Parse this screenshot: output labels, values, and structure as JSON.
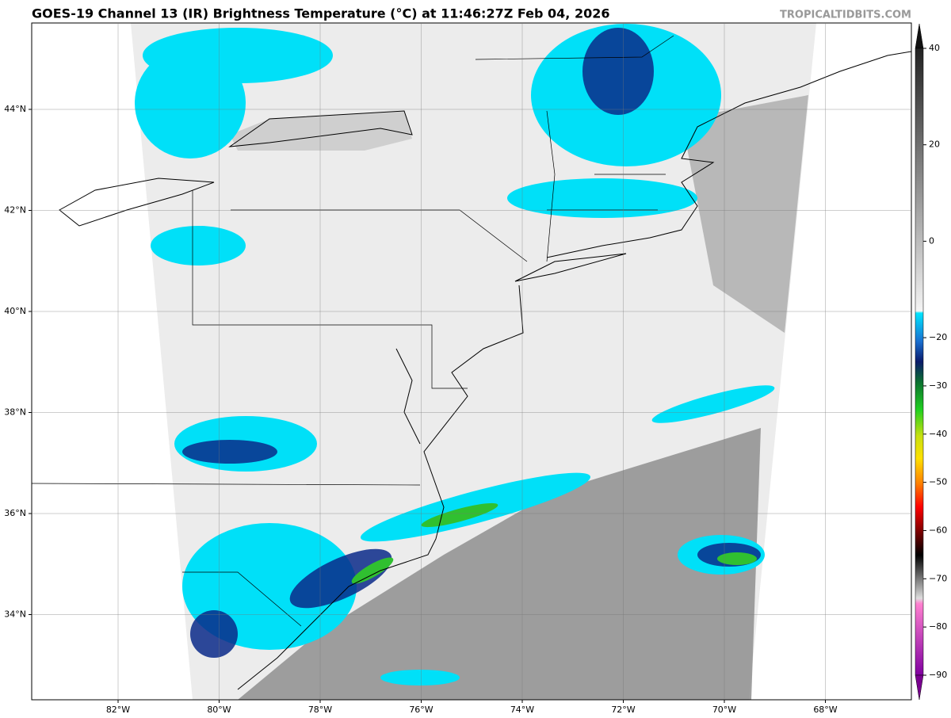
{
  "map": {
    "title": "GOES-19 Channel 13 (IR) Brightness Temperature (°C) at 11:46:27Z Feb 04, 2026",
    "credit": "TROPICALTIDBITS.COM",
    "lat_ticks": [
      {
        "value": 44,
        "label": "44°N"
      },
      {
        "value": 42,
        "label": "42°N"
      },
      {
        "value": 40,
        "label": "40°N"
      },
      {
        "value": 38,
        "label": "38°N"
      },
      {
        "value": 36,
        "label": "36°N"
      },
      {
        "value": 34,
        "label": "34°N"
      }
    ],
    "lon_ticks": [
      {
        "value": -82,
        "label": "82°W"
      },
      {
        "value": -80,
        "label": "80°W"
      },
      {
        "value": -78,
        "label": "78°W"
      },
      {
        "value": -76,
        "label": "76°W"
      },
      {
        "value": -74,
        "label": "74°W"
      },
      {
        "value": -72,
        "label": "72°W"
      },
      {
        "value": -70,
        "label": "70°W"
      },
      {
        "value": -68,
        "label": "68°W"
      }
    ],
    "colorbar": {
      "ticks": [
        40,
        20,
        0,
        {
          "value": -20,
          "label": "−20"
        },
        {
          "value": -30,
          "label": "−30"
        },
        {
          "value": -40,
          "label": "−40"
        },
        {
          "value": -50,
          "label": "−50"
        },
        {
          "value": -60,
          "label": "−60"
        },
        {
          "value": -70,
          "label": "−70"
        },
        {
          "value": -80,
          "label": "−80"
        },
        {
          "value": -90,
          "label": "−90"
        }
      ]
    }
  }
}
